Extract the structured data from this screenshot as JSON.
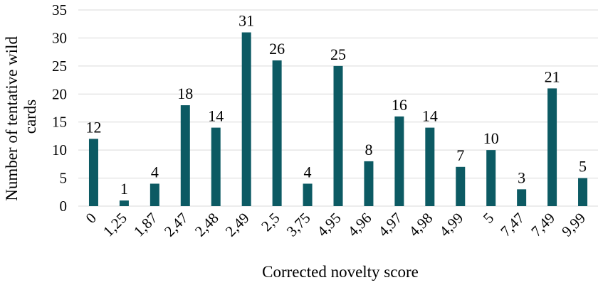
{
  "chart_data": {
    "type": "bar",
    "title": "",
    "xlabel": "Corrected novelty score",
    "ylabel": "Number of tentative wild cards",
    "ylabel_lines": [
      "Number of tentative wild",
      "cards"
    ],
    "categories": [
      "0",
      "1,25",
      "1,87",
      "2,47",
      "2,48",
      "2,49",
      "2,5",
      "3,75",
      "4,95",
      "4,96",
      "4,97",
      "4,98",
      "4,99",
      "5",
      "7,47",
      "7,49",
      "9,99"
    ],
    "values": [
      12,
      1,
      4,
      18,
      14,
      31,
      26,
      4,
      25,
      8,
      16,
      14,
      7,
      10,
      3,
      21,
      5
    ],
    "ylim": [
      0,
      35
    ],
    "yticks": [
      0,
      5,
      10,
      15,
      20,
      25,
      30,
      35
    ],
    "grid": true,
    "legend": "none",
    "colors": {
      "bar": "#0c5a63",
      "grid": "#d9d9d9"
    }
  }
}
